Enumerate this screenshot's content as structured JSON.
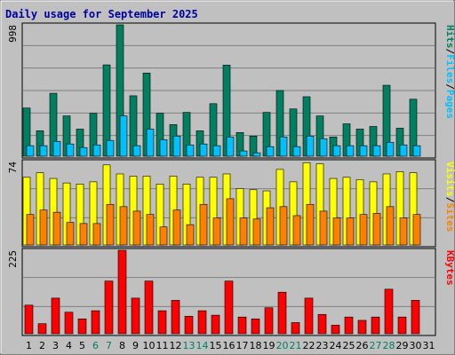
{
  "title": "Daily usage for September 2025",
  "colors": {
    "frame": "#c0c0c0",
    "title": "#0000a0",
    "grid": "#808080",
    "hits": "#008060",
    "files": "#00c0ff",
    "visits": "#ffff00",
    "sites": "#ff8000",
    "kbytes": "#ff0000",
    "weekend": "#00805c",
    "weekday": "#000080"
  },
  "chart_data": [
    {
      "type": "bar",
      "panel": "hits-files",
      "legend": [
        {
          "text": "Hits",
          "colorKey": "hits"
        },
        {
          "text": "Files",
          "colorKey": "files"
        },
        {
          "text": "Pages",
          "colorKey": "files"
        }
      ],
      "separator": "/",
      "ymax_label": "998",
      "ylim": [
        0,
        998
      ],
      "categories": [
        "1",
        "2",
        "3",
        "4",
        "5",
        "6",
        "7",
        "8",
        "9",
        "10",
        "11",
        "12",
        "13",
        "14",
        "15",
        "16",
        "17",
        "18",
        "19",
        "20",
        "21",
        "22",
        "23",
        "24",
        "25",
        "26",
        "27",
        "28",
        "29",
        "30"
      ],
      "series": [
        {
          "name": "Hits",
          "colorKey": "hits",
          "values": [
            366,
            193,
            478,
            306,
            206,
            326,
            694,
            998,
            459,
            632,
            326,
            240,
            333,
            193,
            399,
            692,
            180,
            153,
            333,
            499,
            359,
            452,
            306,
            146,
            246,
            206,
            226,
            539,
            213,
            433
          ]
        },
        {
          "name": "Files",
          "colorKey": "files",
          "values": [
            80,
            80,
            113,
            93,
            66,
            86,
            120,
            306,
            80,
            206,
            126,
            153,
            86,
            93,
            80,
            146,
            40,
            26,
            73,
            146,
            73,
            153,
            133,
            80,
            80,
            80,
            80,
            106,
            86,
            80
          ]
        }
      ]
    },
    {
      "type": "bar",
      "panel": "visits-sites",
      "legend": [
        {
          "text": "Visits",
          "colorKey": "visits"
        },
        {
          "text": "Sites",
          "colorKey": "sites"
        }
      ],
      "separator": "/",
      "ymax_label": "74",
      "ylim": [
        0,
        74
      ],
      "categories": [
        "1",
        "2",
        "3",
        "4",
        "5",
        "6",
        "7",
        "8",
        "9",
        "10",
        "11",
        "12",
        "13",
        "14",
        "15",
        "16",
        "17",
        "18",
        "19",
        "20",
        "21",
        "22",
        "23",
        "24",
        "25",
        "26",
        "27",
        "28",
        "29",
        "30"
      ],
      "series": [
        {
          "name": "Visits",
          "colorKey": "visits",
          "values": [
            60,
            64,
            59,
            55,
            54,
            56,
            71,
            63,
            61,
            61,
            54,
            61,
            54,
            60,
            60,
            63,
            50,
            49,
            48,
            67,
            56,
            73,
            72,
            59,
            60,
            58,
            56,
            63,
            65,
            64
          ]
        },
        {
          "name": "Sites",
          "colorKey": "sites",
          "values": [
            27,
            31,
            29,
            20,
            19,
            19,
            36,
            34,
            30,
            27,
            16,
            31,
            18,
            36,
            24,
            41,
            24,
            23,
            33,
            34,
            26,
            36,
            30,
            24,
            24,
            27,
            28,
            34,
            24,
            27
          ]
        }
      ]
    },
    {
      "type": "bar",
      "panel": "kbytes",
      "legend": [
        {
          "text": "KBytes",
          "colorKey": "kbytes"
        }
      ],
      "separator": "",
      "ymax_label": "225",
      "ylim": [
        0,
        225
      ],
      "categories": [
        "1",
        "2",
        "3",
        "4",
        "5",
        "6",
        "7",
        "8",
        "9",
        "10",
        "11",
        "12",
        "13",
        "14",
        "15",
        "16",
        "17",
        "18",
        "19",
        "20",
        "21",
        "22",
        "23",
        "24",
        "25",
        "26",
        "27",
        "28",
        "29",
        "30"
      ],
      "series": [
        {
          "name": "KBytes",
          "colorKey": "kbytes",
          "values": [
            77,
            27,
            96,
            58,
            40,
            62,
            142,
            225,
            96,
            142,
            62,
            90,
            47,
            62,
            50,
            142,
            45,
            40,
            70,
            112,
            30,
            96,
            52,
            23,
            45,
            36,
            45,
            120,
            45,
            90
          ]
        }
      ]
    }
  ],
  "x_labels": [
    {
      "text": "1",
      "weekend": false
    },
    {
      "text": "2",
      "weekend": false
    },
    {
      "text": "3",
      "weekend": false
    },
    {
      "text": "4",
      "weekend": false
    },
    {
      "text": "5",
      "weekend": false
    },
    {
      "text": "6",
      "weekend": true
    },
    {
      "text": "7",
      "weekend": true
    },
    {
      "text": "8",
      "weekend": false
    },
    {
      "text": "9",
      "weekend": false
    },
    {
      "text": "10",
      "weekend": false
    },
    {
      "text": "11",
      "weekend": false
    },
    {
      "text": "12",
      "weekend": false
    },
    {
      "text": "13",
      "weekend": true
    },
    {
      "text": "14",
      "weekend": true
    },
    {
      "text": "15",
      "weekend": false
    },
    {
      "text": "16",
      "weekend": false
    },
    {
      "text": "17",
      "weekend": false
    },
    {
      "text": "18",
      "weekend": false
    },
    {
      "text": "19",
      "weekend": false
    },
    {
      "text": "20",
      "weekend": true
    },
    {
      "text": "21",
      "weekend": true
    },
    {
      "text": "22",
      "weekend": false
    },
    {
      "text": "23",
      "weekend": false
    },
    {
      "text": "24",
      "weekend": false
    },
    {
      "text": "25",
      "weekend": false
    },
    {
      "text": "26",
      "weekend": false
    },
    {
      "text": "27",
      "weekend": true
    },
    {
      "text": "28",
      "weekend": true
    },
    {
      "text": "29",
      "weekend": false
    },
    {
      "text": "30",
      "weekend": false
    },
    {
      "text": "31",
      "weekend": false
    }
  ]
}
